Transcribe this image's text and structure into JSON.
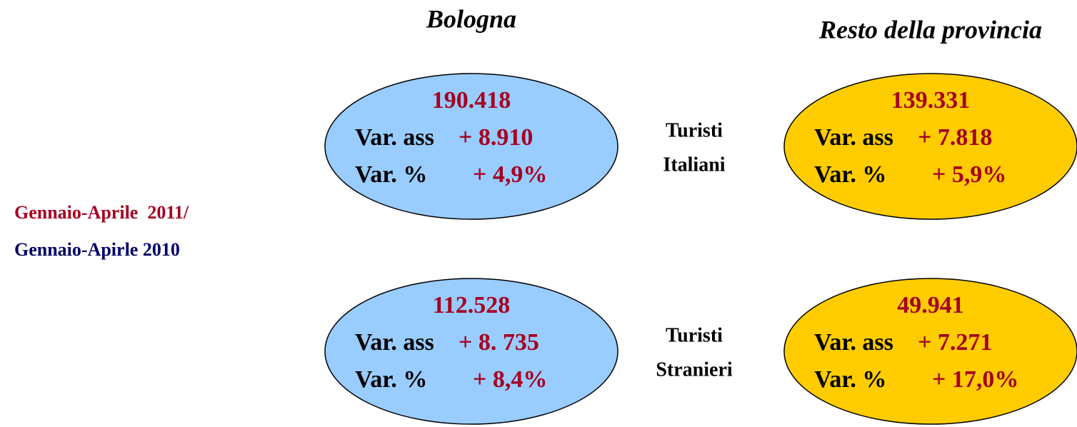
{
  "columns": [
    "Bologna",
    "Resto della provincia"
  ],
  "rows": [
    {
      "label": [
        "Turisti",
        "Italiani"
      ]
    },
    {
      "label": [
        "Turisti",
        "Stranieri"
      ]
    }
  ],
  "period": {
    "line1": "Gennaio-Aprile  2011/",
    "line2": "Gennaio-Apirle 2010"
  },
  "labels": {
    "abs": "Var. ass",
    "pct": "Var. %"
  },
  "cells": [
    [
      {
        "total": "190.418",
        "abs": "+ 8.910",
        "pct": "+ 4,9%"
      },
      {
        "total": "139.331",
        "abs": "+ 7.818",
        "pct": "+ 5,9%"
      }
    ],
    [
      {
        "total": "112.528",
        "abs": "+ 8. 735",
        "pct": "+ 8,4%"
      },
      {
        "total": "49.941",
        "abs": "+ 7.271",
        "pct": "+ 17,0%"
      }
    ]
  ]
}
